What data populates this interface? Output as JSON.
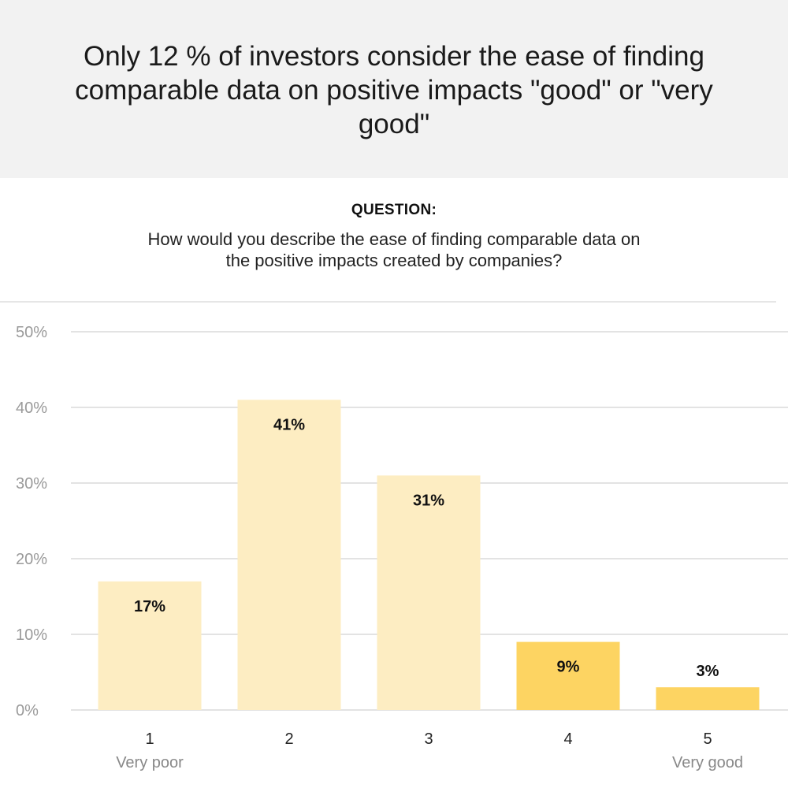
{
  "header": {
    "headline": "Only 12 % of investors consider the ease of finding comparable data on positive impacts \"good\" or \"very good\""
  },
  "question": {
    "label": "QUESTION:",
    "text": "How would you describe the ease of finding comparable data on the positive impacts created by companies?"
  },
  "colors": {
    "header_bg": "#f2f2f2",
    "bar_light": "#fdedc2",
    "bar_highlight": "#fdd462",
    "gridline": "#e3e3e3"
  },
  "chart_data": {
    "type": "bar",
    "categories": [
      "1",
      "2",
      "3",
      "4",
      "5"
    ],
    "category_sublabels": [
      "Very poor",
      "",
      "",
      "",
      "Very good"
    ],
    "values": [
      17,
      41,
      31,
      9,
      3
    ],
    "value_labels": [
      "17%",
      "41%",
      "31%",
      "9%",
      "3%"
    ],
    "highlighted": [
      false,
      false,
      false,
      true,
      true
    ],
    "yticks": [
      "0%",
      "10%",
      "20%",
      "30%",
      "40%",
      "50%"
    ],
    "ylim": [
      0,
      50
    ],
    "grid": true,
    "unit": "%"
  }
}
